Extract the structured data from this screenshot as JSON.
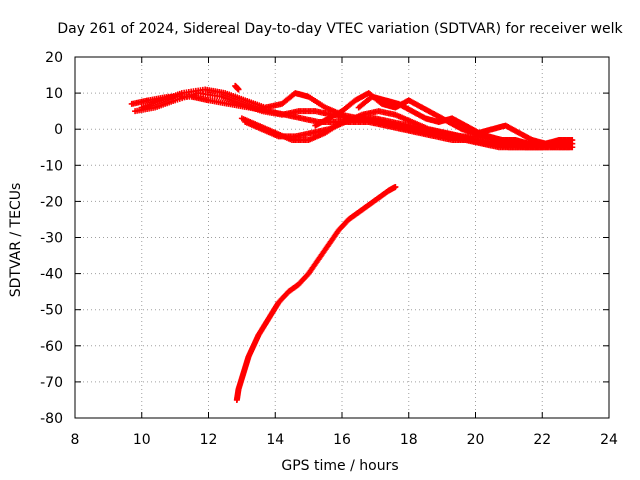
{
  "chart_data": {
    "type": "scatter",
    "title": "Day 261 of 2024, Sidereal Day-to-day VTEC variation (SDTVAR) for receiver welk",
    "xlabel": "GPS time / hours",
    "ylabel": "SDTVAR / TECUs",
    "xlim": [
      8,
      24
    ],
    "ylim": [
      -80,
      20
    ],
    "xticks": [
      "8",
      "10",
      "12",
      "14",
      "16",
      "18",
      "20",
      "22",
      "24"
    ],
    "yticks": [
      "20",
      "10",
      "0",
      "-10",
      "-20",
      "-30",
      "-40",
      "-50",
      "-60",
      "-70",
      "-80"
    ],
    "grid": true,
    "marker": "plus",
    "color": "#ff0000",
    "series": [
      {
        "name": "track-1",
        "x": [
          9.7,
          10.2,
          10.8,
          11.5,
          12.0,
          12.6,
          13.2,
          13.8,
          14.3,
          14.8,
          15.3,
          15.8,
          16.3,
          16.8,
          17.3,
          17.8,
          18.3,
          18.8,
          19.3,
          19.8,
          20.3,
          20.8,
          21.3,
          21.8,
          22.3,
          22.8
        ],
        "y": [
          7,
          8,
          9,
          9,
          8,
          7,
          6,
          5,
          4,
          3,
          2,
          2,
          2,
          2,
          1,
          0,
          -1,
          -2,
          -3,
          -3,
          -4,
          -4,
          -4,
          -4,
          -4,
          -4
        ]
      },
      {
        "name": "track-2",
        "x": [
          9.8,
          10.4,
          11.0,
          11.7,
          12.4,
          13.0,
          13.6,
          14.2,
          14.7,
          15.2,
          15.7,
          16.2,
          16.7,
          17.2,
          17.7,
          18.2,
          18.7,
          19.2,
          19.7,
          20.2,
          20.7,
          21.2,
          21.7,
          22.2,
          22.8
        ],
        "y": [
          5,
          6,
          8,
          10,
          9,
          7,
          5,
          4,
          5,
          5,
          4,
          3,
          3,
          2,
          1,
          0,
          -1,
          -2,
          -3,
          -4,
          -5,
          -5,
          -5,
          -5,
          -5
        ]
      },
      {
        "name": "track-3",
        "x": [
          10.0,
          10.6,
          11.2,
          11.9,
          12.5,
          13.1,
          13.7,
          14.2,
          14.6,
          15.0,
          15.5,
          16.0,
          16.5,
          17.0,
          17.5,
          18.0,
          18.5,
          19.0,
          19.5,
          20.0,
          20.5,
          21.0,
          21.5,
          22.0,
          22.5,
          22.9
        ],
        "y": [
          6,
          8,
          10,
          11,
          10,
          8,
          6,
          7,
          10,
          9,
          6,
          4,
          3,
          3,
          2,
          1,
          0,
          -1,
          -2,
          -3,
          -4,
          -5,
          -5,
          -5,
          -4,
          -4
        ]
      },
      {
        "name": "track-4",
        "x": [
          13.0,
          13.5,
          14.0,
          14.5,
          15.0,
          15.5,
          16.0,
          16.5,
          17.0,
          17.5,
          18.0,
          18.5,
          19.0,
          19.5,
          20.0,
          20.5,
          21.0,
          21.5,
          22.0,
          22.5,
          22.9
        ],
        "y": [
          3,
          1,
          -1,
          -3,
          -3,
          -1,
          2,
          3,
          2,
          1,
          0,
          -1,
          -1,
          -2,
          -3,
          -4,
          -4,
          -5,
          -5,
          -5,
          -5
        ]
      },
      {
        "name": "track-5",
        "x": [
          13.1,
          13.6,
          14.1,
          14.6,
          15.1,
          15.6,
          16.1,
          16.6,
          17.1,
          17.6,
          18.1,
          18.6,
          19.1,
          19.6,
          20.1,
          20.6,
          21.1,
          21.6,
          22.1,
          22.6
        ],
        "y": [
          2,
          0,
          -2,
          -2,
          -1,
          0,
          2,
          4,
          5,
          4,
          2,
          0,
          -1,
          -2,
          -2,
          -3,
          -4,
          -4,
          -4,
          -4
        ]
      },
      {
        "name": "track-6",
        "x": [
          15.2,
          15.6,
          16.0,
          16.4,
          16.8,
          17.2,
          17.6,
          18.0,
          18.4,
          18.8,
          19.2,
          19.6,
          20.0,
          20.4,
          20.8,
          21.2,
          21.6,
          22.0,
          22.4
        ],
        "y": [
          1,
          3,
          5,
          8,
          10,
          7,
          6,
          8,
          6,
          4,
          2,
          0,
          -1,
          -2,
          -3,
          -3,
          -4,
          -4,
          -4
        ]
      },
      {
        "name": "track-7",
        "x": [
          16.5,
          16.9,
          17.3,
          17.7,
          18.1,
          18.5,
          18.9,
          19.3,
          19.7,
          20.1,
          20.5,
          20.9,
          21.3,
          21.7,
          22.1,
          22.5,
          22.9
        ],
        "y": [
          6,
          9,
          8,
          7,
          5,
          3,
          2,
          3,
          1,
          -1,
          0,
          1,
          -1,
          -3,
          -4,
          -3,
          -3
        ]
      },
      {
        "name": "track-8",
        "x": [
          12.85,
          12.9,
          13.0,
          13.1,
          13.2,
          13.35,
          13.5,
          13.7,
          13.9,
          14.1,
          14.4,
          14.7,
          15.0,
          15.3,
          15.6,
          15.9,
          16.2,
          16.5,
          16.8,
          17.1,
          17.4,
          17.6
        ],
        "y": [
          -75,
          -72,
          -69,
          -66,
          -63,
          -60,
          -57,
          -54,
          -51,
          -48,
          -45,
          -43,
          -40,
          -36,
          -32,
          -28,
          -25,
          -23,
          -21,
          -19,
          -17,
          -16
        ]
      },
      {
        "name": "stray",
        "x": [
          12.8,
          12.9
        ],
        "y": [
          12,
          11
        ]
      }
    ]
  }
}
